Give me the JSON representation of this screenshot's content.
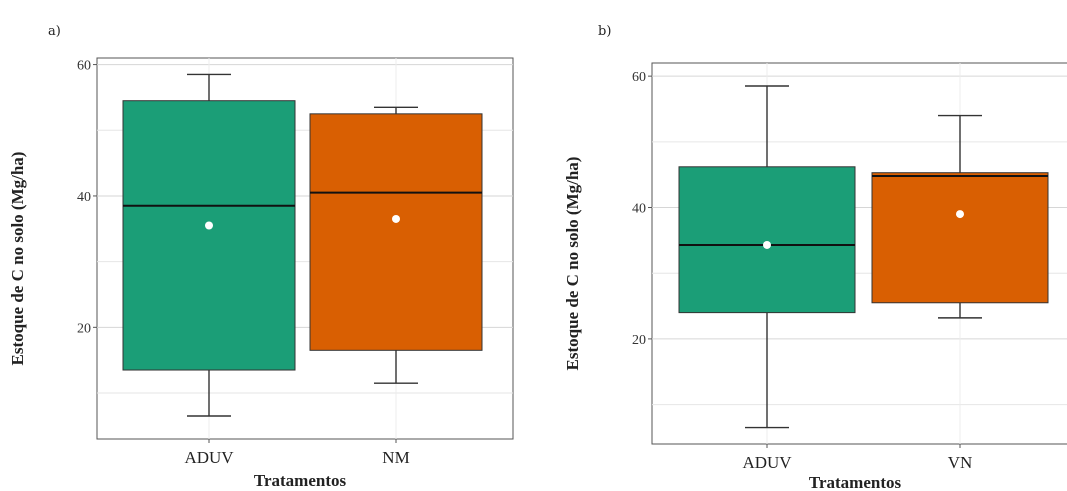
{
  "chart_data": [
    {
      "type": "box",
      "panel_label": "a)",
      "xlabel": "Tratamentos",
      "ylabel": "Estoque de C no solo (Mg/ha)",
      "ylim": [
        3,
        61
      ],
      "yticks": [
        20,
        40,
        60
      ],
      "grid": true,
      "categories": [
        "ADUV",
        "NM"
      ],
      "boxes": [
        {
          "category": "ADUV",
          "min": 6.5,
          "q1": 13.5,
          "median": 38.5,
          "q3": 54.5,
          "max": 58.5,
          "mean": 35.5,
          "color": "#1b9e77"
        },
        {
          "category": "NM",
          "min": 11.5,
          "q1": 16.5,
          "median": 40.5,
          "q3": 52.5,
          "max": 53.5,
          "mean": 36.5,
          "color": "#d95f02"
        }
      ]
    },
    {
      "type": "box",
      "panel_label": "b)",
      "xlabel": "Tratamentos",
      "ylabel": "Estoque de C no solo (Mg/ha)",
      "ylim": [
        4,
        62
      ],
      "yticks": [
        20,
        40,
        60
      ],
      "grid": true,
      "categories": [
        "ADUV",
        "VN"
      ],
      "boxes": [
        {
          "category": "ADUV",
          "min": 6.5,
          "q1": 24.0,
          "median": 34.3,
          "q3": 46.2,
          "max": 58.5,
          "mean": 34.3,
          "color": "#1b9e77"
        },
        {
          "category": "VN",
          "min": 23.2,
          "q1": 25.5,
          "median": 44.8,
          "q3": 45.3,
          "max": 54.0,
          "mean": 39.0,
          "color": "#d95f02"
        }
      ]
    }
  ]
}
